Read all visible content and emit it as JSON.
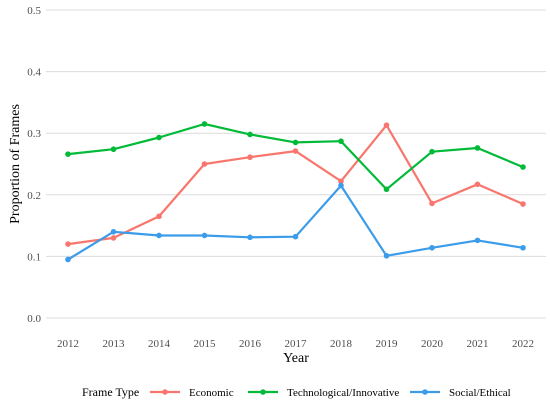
{
  "chart_data": {
    "type": "line",
    "xlabel": "Year",
    "ylabel": "Proportion of Frames",
    "categories": [
      "2012",
      "2013",
      "2014",
      "2015",
      "2016",
      "2017",
      "2018",
      "2019",
      "2020",
      "2021",
      "2022"
    ],
    "ylim": [
      0,
      0.5
    ],
    "yticks": [
      "0.0",
      "0.1",
      "0.2",
      "0.3",
      "0.4",
      "0.5"
    ],
    "grid": true,
    "legend": {
      "title": "Frame Type",
      "position": "bottom"
    },
    "series": [
      {
        "name": "Economic",
        "color": "#F8766D",
        "values": [
          0.12,
          0.13,
          0.165,
          0.25,
          0.261,
          0.271,
          0.222,
          0.313,
          0.186,
          0.217,
          0.185
        ]
      },
      {
        "name": "Technological/Innovative",
        "color": "#00BA38",
        "values": [
          0.266,
          0.274,
          0.293,
          0.315,
          0.298,
          0.285,
          0.287,
          0.209,
          0.27,
          0.276,
          0.245
        ]
      },
      {
        "name": "Social/Ethical",
        "color": "#3B9CEA",
        "values": [
          0.095,
          0.14,
          0.134,
          0.134,
          0.131,
          0.132,
          0.215,
          0.101,
          0.114,
          0.126,
          0.114
        ]
      }
    ]
  }
}
